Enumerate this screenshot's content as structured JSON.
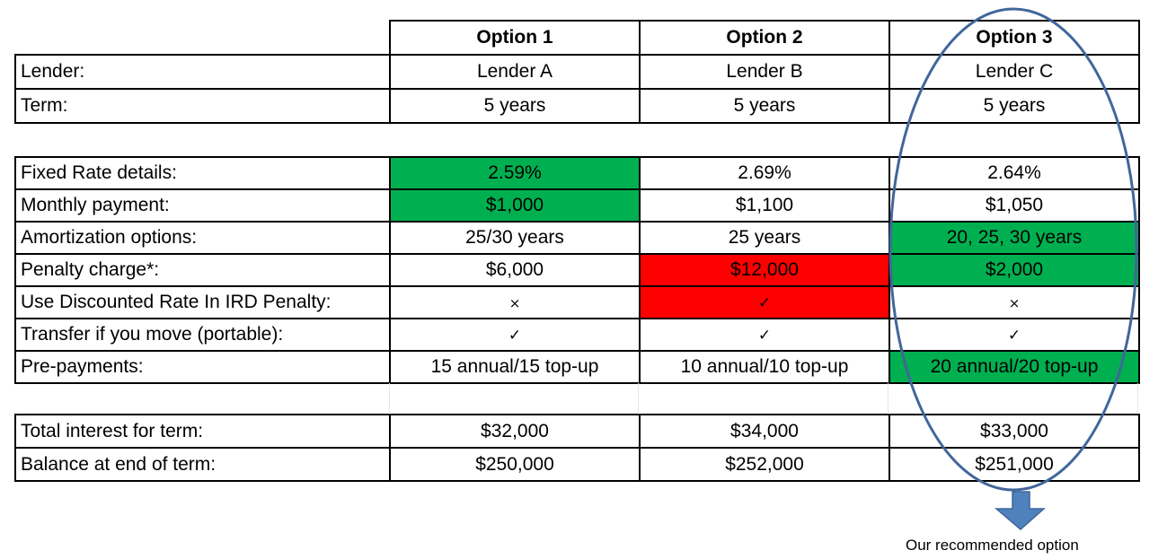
{
  "header": {
    "options": [
      "Option 1",
      "Option 2",
      "Option 3"
    ]
  },
  "general": [
    {
      "label": "Lender:",
      "values": [
        "Lender A",
        "Lender B",
        "Lender C"
      ]
    },
    {
      "label": "Term:",
      "values": [
        "5 years",
        "5 years",
        "5 years"
      ]
    }
  ],
  "details": [
    {
      "label": "Fixed Rate details:",
      "values": [
        "2.59%",
        "2.69%",
        "2.64%"
      ],
      "highlight": [
        "green",
        "",
        ""
      ]
    },
    {
      "label": "Monthly payment:",
      "values": [
        "$1,000",
        "$1,100",
        "$1,050"
      ],
      "highlight": [
        "green",
        "",
        ""
      ]
    },
    {
      "label": "Amortization options:",
      "values": [
        "25/30 years",
        "25 years",
        "20, 25, 30 years"
      ],
      "highlight": [
        "",
        "",
        "green"
      ]
    },
    {
      "label": "Penalty charge*:",
      "values": [
        "$6,000",
        "$12,000",
        "$2,000"
      ],
      "highlight": [
        "",
        "red",
        "green"
      ]
    },
    {
      "label": "Use Discounted Rate In IRD Penalty:",
      "values": [
        "×",
        "✓",
        "×"
      ],
      "highlight": [
        "",
        "red",
        ""
      ]
    },
    {
      "label": "Transfer if you move (portable):",
      "values": [
        "✓",
        "✓",
        "✓"
      ],
      "highlight": [
        "",
        "",
        ""
      ]
    },
    {
      "label": "Pre-payments:",
      "values": [
        "15 annual/15 top-up",
        "10 annual/10 top-up",
        "20 annual/20 top-up"
      ],
      "highlight": [
        "",
        "",
        "green"
      ]
    }
  ],
  "totals": [
    {
      "label": "Total interest for term:",
      "values": [
        "$32,000",
        "$34,000",
        "$33,000"
      ]
    },
    {
      "label": "Balance at end of term:",
      "values": [
        "$250,000",
        "$252,000",
        "$251,000"
      ]
    }
  ],
  "recommendation": {
    "caption": "Our recommended option",
    "option_index": 3,
    "outline_color": "#41669b",
    "arrow_color": "#4f81bd"
  },
  "colors": {
    "highlight_good": "#00b050",
    "highlight_bad": "#ff0000"
  }
}
